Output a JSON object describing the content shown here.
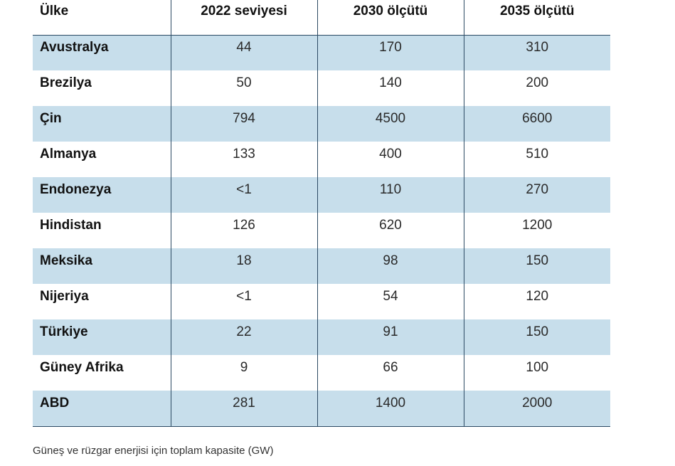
{
  "chart_data": {
    "type": "table",
    "columns": [
      "Ülke",
      "2022 seviyesi",
      "2030 ölçütü",
      "2035 ölçütü"
    ],
    "rows": [
      [
        "Avustralya",
        "44",
        "170",
        "310"
      ],
      [
        "Brezilya",
        "50",
        "140",
        "200"
      ],
      [
        "Çin",
        "794",
        "4500",
        "6600"
      ],
      [
        "Almanya",
        "133",
        "400",
        "510"
      ],
      [
        "Endonezya",
        "<1",
        "110",
        "270"
      ],
      [
        "Hindistan",
        "126",
        "620",
        "1200"
      ],
      [
        "Meksika",
        "18",
        "98",
        "150"
      ],
      [
        "Nijeriya",
        "<1",
        "54",
        "120"
      ],
      [
        "Türkiye",
        "22",
        "91",
        "150"
      ],
      [
        "Güney  Afrika",
        "9",
        "66",
        "100"
      ],
      [
        "ABD",
        "281",
        "1400",
        "2000"
      ]
    ],
    "caption": "Güneş ve rüzgar enerjisi için toplam kapasite (GW)"
  },
  "colors": {
    "row_shade": "#c7deeb",
    "rule_line": "#2c4a63"
  }
}
